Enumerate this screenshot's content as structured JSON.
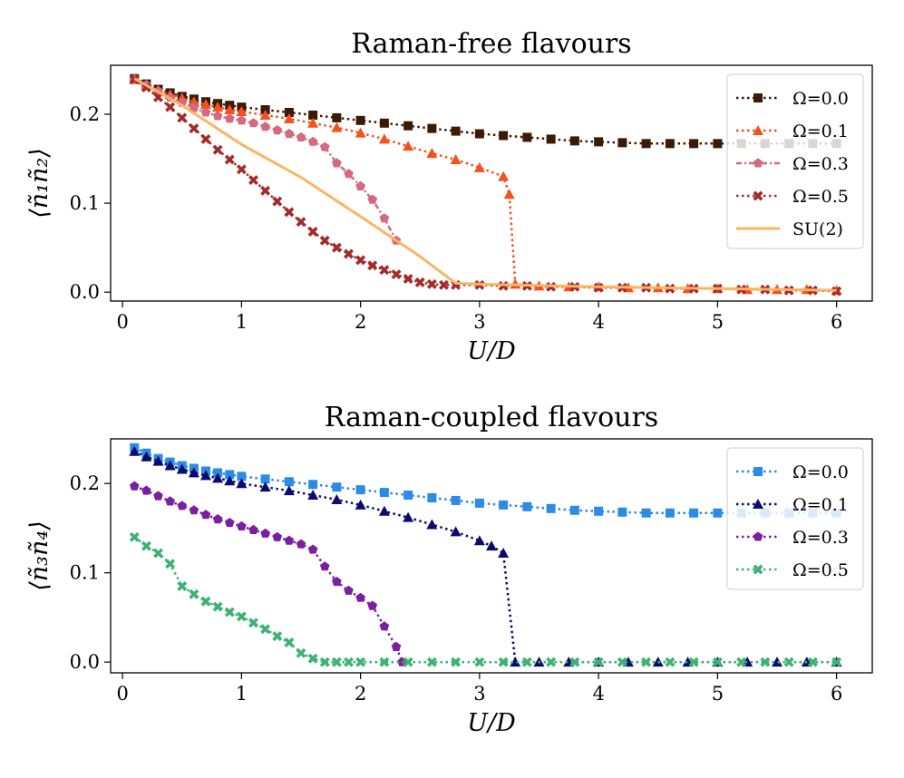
{
  "chart_data": [
    {
      "type": "line",
      "title": "Raman-free flavours",
      "xlabel": "U/D",
      "ylabel": "⟨ñ₁ñ₂⟩",
      "xlim": [
        -0.1,
        6.3
      ],
      "ylim": [
        -0.01,
        0.255
      ],
      "xticks": [
        0,
        1,
        2,
        3,
        4,
        5,
        6
      ],
      "xtick_labels": [
        "0",
        "1",
        "2",
        "3",
        "4",
        "5",
        "6"
      ],
      "yticks": [
        0.0,
        0.1,
        0.2
      ],
      "ytick_labels": [
        "0.0",
        "0.1",
        "0.2"
      ],
      "legend_position": "top-right",
      "series": [
        {
          "name": "Ω=0.0",
          "color": "#3d1a04",
          "marker": "square",
          "line": "dotted",
          "x": [
            0.1,
            0.2,
            0.3,
            0.4,
            0.5,
            0.6,
            0.7,
            0.8,
            0.9,
            1.0,
            1.2,
            1.4,
            1.6,
            1.8,
            2.0,
            2.2,
            2.4,
            2.6,
            2.8,
            3.0,
            3.2,
            3.4,
            3.6,
            3.8,
            4.0,
            4.2,
            4.4,
            4.6,
            4.8,
            5.0,
            5.2,
            5.4,
            5.6,
            5.8,
            6.0
          ],
          "y": [
            0.24,
            0.234,
            0.228,
            0.224,
            0.22,
            0.217,
            0.214,
            0.212,
            0.21,
            0.208,
            0.205,
            0.202,
            0.199,
            0.196,
            0.193,
            0.19,
            0.187,
            0.184,
            0.181,
            0.178,
            0.176,
            0.174,
            0.172,
            0.17,
            0.169,
            0.168,
            0.167,
            0.167,
            0.167,
            0.167,
            0.167,
            0.167,
            0.167,
            0.167,
            0.167
          ]
        },
        {
          "name": "Ω=0.1",
          "color": "#f4511e",
          "marker": "triangle",
          "line": "dotted",
          "x": [
            0.1,
            0.2,
            0.3,
            0.4,
            0.5,
            0.6,
            0.7,
            0.8,
            0.9,
            1.0,
            1.2,
            1.4,
            1.6,
            1.8,
            2.0,
            2.2,
            2.4,
            2.6,
            2.8,
            3.0,
            3.2,
            3.25,
            3.3,
            3.5,
            3.75,
            4.0,
            4.25,
            4.5,
            4.75,
            5.0,
            5.25,
            5.5,
            5.75,
            6.0
          ],
          "y": [
            0.239,
            0.233,
            0.227,
            0.222,
            0.218,
            0.214,
            0.211,
            0.208,
            0.205,
            0.203,
            0.199,
            0.195,
            0.19,
            0.185,
            0.179,
            0.172,
            0.164,
            0.156,
            0.149,
            0.14,
            0.13,
            0.11,
            0.009,
            0.007,
            0.006,
            0.006,
            0.005,
            0.005,
            0.004,
            0.004,
            0.003,
            0.003,
            0.003,
            0.002
          ]
        },
        {
          "name": "Ω=0.3",
          "color": "#d4697f",
          "marker": "pentagon",
          "line": "dashdot",
          "x": [
            0.1,
            0.2,
            0.3,
            0.4,
            0.5,
            0.6,
            0.7,
            0.8,
            0.9,
            1.0,
            1.1,
            1.2,
            1.3,
            1.4,
            1.5,
            1.6,
            1.7,
            1.8,
            1.9,
            2.0,
            2.1,
            2.2,
            2.3
          ],
          "y": [
            0.239,
            0.233,
            0.226,
            0.219,
            0.213,
            0.207,
            0.202,
            0.198,
            0.195,
            0.193,
            0.19,
            0.186,
            0.182,
            0.178,
            0.174,
            0.169,
            0.163,
            0.145,
            0.133,
            0.119,
            0.104,
            0.083,
            0.058
          ]
        },
        {
          "name": "Ω=0.5",
          "color": "#a52a2a",
          "marker": "cross",
          "line": "dotted",
          "x": [
            0.1,
            0.2,
            0.3,
            0.4,
            0.5,
            0.6,
            0.7,
            0.8,
            0.9,
            1.0,
            1.1,
            1.2,
            1.3,
            1.4,
            1.5,
            1.6,
            1.7,
            1.8,
            1.9,
            2.0,
            2.1,
            2.2,
            2.3,
            2.4,
            2.5,
            2.6,
            2.7,
            2.8,
            3.0,
            3.2,
            3.4,
            3.6,
            3.8,
            4.0,
            4.2,
            4.4,
            4.6,
            4.8,
            5.0,
            5.2,
            5.4,
            5.6,
            5.8,
            6.0
          ],
          "y": [
            0.239,
            0.23,
            0.219,
            0.208,
            0.196,
            0.184,
            0.172,
            0.16,
            0.149,
            0.138,
            0.126,
            0.114,
            0.102,
            0.09,
            0.079,
            0.068,
            0.058,
            0.05,
            0.043,
            0.036,
            0.03,
            0.025,
            0.02,
            0.015,
            0.011,
            0.009,
            0.008,
            0.008,
            0.008,
            0.007,
            0.007,
            0.006,
            0.006,
            0.005,
            0.005,
            0.005,
            0.004,
            0.004,
            0.004,
            0.003,
            0.003,
            0.002,
            0.002,
            0.001
          ]
        },
        {
          "name": "SU(2)",
          "color": "#fdb462",
          "marker": "none",
          "line": "solid",
          "x": [
            0.1,
            0.5,
            1.0,
            1.5,
            2.0,
            2.5,
            2.8,
            3.0,
            4.0,
            5.0,
            6.0
          ],
          "y": [
            0.24,
            0.21,
            0.166,
            0.129,
            0.085,
            0.04,
            0.01,
            0.009,
            0.006,
            0.004,
            0.002
          ]
        }
      ]
    },
    {
      "type": "line",
      "title": "Raman-coupled flavours",
      "xlabel": "U/D",
      "ylabel": "⟨ñ₃ñ₄⟩",
      "xlim": [
        -0.1,
        6.3
      ],
      "ylim": [
        -0.012,
        0.25
      ],
      "xticks": [
        0,
        1,
        2,
        3,
        4,
        5,
        6
      ],
      "xtick_labels": [
        "0",
        "1",
        "2",
        "3",
        "4",
        "5",
        "6"
      ],
      "yticks": [
        0.0,
        0.1,
        0.2
      ],
      "ytick_labels": [
        "0.0",
        "0.1",
        "0.2"
      ],
      "legend_position": "top-right",
      "series": [
        {
          "name": "Ω=0.0",
          "color": "#2b8be6",
          "marker": "square",
          "line": "dotted",
          "x": [
            0.1,
            0.2,
            0.3,
            0.4,
            0.5,
            0.6,
            0.7,
            0.8,
            0.9,
            1.0,
            1.2,
            1.4,
            1.6,
            1.8,
            2.0,
            2.2,
            2.4,
            2.6,
            2.8,
            3.0,
            3.2,
            3.4,
            3.6,
            3.8,
            4.0,
            4.2,
            4.4,
            4.6,
            4.8,
            5.0,
            5.2,
            5.4,
            5.6,
            5.8,
            6.0
          ],
          "y": [
            0.24,
            0.234,
            0.228,
            0.224,
            0.22,
            0.217,
            0.214,
            0.212,
            0.21,
            0.208,
            0.205,
            0.202,
            0.199,
            0.196,
            0.193,
            0.19,
            0.187,
            0.184,
            0.181,
            0.178,
            0.176,
            0.174,
            0.172,
            0.17,
            0.169,
            0.168,
            0.167,
            0.167,
            0.167,
            0.167,
            0.167,
            0.167,
            0.167,
            0.167,
            0.167
          ]
        },
        {
          "name": "Ω=0.1",
          "color": "#0b0a6e",
          "marker": "triangle",
          "line": "dotted",
          "x": [
            0.1,
            0.2,
            0.3,
            0.4,
            0.5,
            0.6,
            0.7,
            0.8,
            0.9,
            1.0,
            1.2,
            1.4,
            1.6,
            1.8,
            2.0,
            2.2,
            2.4,
            2.6,
            2.8,
            3.0,
            3.1,
            3.2,
            3.3,
            3.5,
            3.75,
            4.0,
            4.25,
            4.5,
            4.75,
            5.0,
            5.25,
            5.5,
            5.75,
            6.0
          ],
          "y": [
            0.236,
            0.23,
            0.225,
            0.22,
            0.216,
            0.212,
            0.209,
            0.206,
            0.203,
            0.2,
            0.196,
            0.192,
            0.187,
            0.182,
            0.176,
            0.169,
            0.162,
            0.154,
            0.146,
            0.136,
            0.13,
            0.122,
            0.0,
            0.0,
            0.0,
            0.0,
            0.0,
            0.0,
            0.0,
            0.0,
            0.0,
            0.0,
            0.0,
            0.0
          ]
        },
        {
          "name": "Ω=0.3",
          "color": "#7b1fa2",
          "marker": "pentagon",
          "line": "dotted",
          "x": [
            0.1,
            0.2,
            0.3,
            0.4,
            0.5,
            0.6,
            0.7,
            0.8,
            0.9,
            1.0,
            1.1,
            1.2,
            1.3,
            1.4,
            1.5,
            1.6,
            1.7,
            1.8,
            1.9,
            2.0,
            2.1,
            2.2,
            2.3,
            2.35
          ],
          "y": [
            0.197,
            0.192,
            0.186,
            0.18,
            0.175,
            0.17,
            0.165,
            0.16,
            0.156,
            0.152,
            0.148,
            0.144,
            0.14,
            0.136,
            0.132,
            0.126,
            0.107,
            0.09,
            0.08,
            0.072,
            0.063,
            0.04,
            0.017,
            0.0
          ]
        },
        {
          "name": "Ω=0.5",
          "color": "#3cb371",
          "marker": "cross",
          "line": "dotted",
          "x": [
            0.1,
            0.2,
            0.3,
            0.4,
            0.5,
            0.6,
            0.7,
            0.8,
            0.9,
            1.0,
            1.1,
            1.2,
            1.3,
            1.4,
            1.5,
            1.6,
            1.7,
            1.8,
            1.9,
            2.0,
            2.2,
            2.4,
            2.6,
            2.8,
            3.0,
            3.2,
            3.4,
            3.6,
            3.8,
            4.0,
            4.2,
            4.4,
            4.6,
            4.8,
            5.0,
            5.2,
            5.4,
            5.6,
            5.8,
            6.0
          ],
          "y": [
            0.14,
            0.13,
            0.122,
            0.11,
            0.085,
            0.076,
            0.068,
            0.062,
            0.056,
            0.051,
            0.044,
            0.037,
            0.029,
            0.022,
            0.01,
            0.004,
            0.0,
            0.0,
            0.0,
            0.0,
            0.0,
            0.0,
            0.0,
            0.0,
            0.0,
            0.0,
            0.0,
            0.0,
            0.0,
            0.0,
            0.0,
            0.0,
            0.0,
            0.0,
            0.0,
            0.0,
            0.0,
            0.0,
            0.0,
            0.0
          ]
        }
      ]
    }
  ]
}
